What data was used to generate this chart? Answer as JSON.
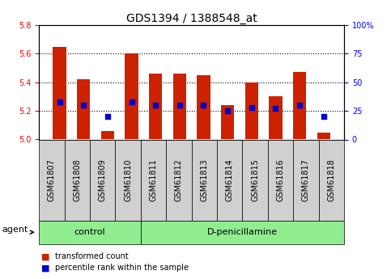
{
  "title": "GDS1394 / 1388548_at",
  "samples": [
    "GSM61807",
    "GSM61808",
    "GSM61809",
    "GSM61810",
    "GSM61811",
    "GSM61812",
    "GSM61813",
    "GSM61814",
    "GSM61815",
    "GSM61816",
    "GSM61817",
    "GSM61818"
  ],
  "bar_tops": [
    5.65,
    5.42,
    5.06,
    5.6,
    5.46,
    5.46,
    5.45,
    5.24,
    5.4,
    5.3,
    5.47,
    5.05
  ],
  "percentile_ranks": [
    33,
    30,
    20,
    33,
    30,
    30,
    30,
    25,
    28,
    27,
    30,
    20
  ],
  "bar_bottom": 5.0,
  "ylim": [
    5.0,
    5.8
  ],
  "y2lim": [
    0,
    100
  ],
  "yticks": [
    5.0,
    5.2,
    5.4,
    5.6,
    5.8
  ],
  "y2ticks": [
    0,
    25,
    50,
    75,
    100
  ],
  "bar_color": "#cc2200",
  "dot_color": "#0000cc",
  "grid_color": "#000000",
  "bg_color": "#ffffff",
  "plot_bg": "#ffffff",
  "bar_width": 0.55,
  "n_control": 4,
  "control_label": "control",
  "dpen_label": "D-penicillamine",
  "agent_label": "agent",
  "legend_bar_label": "transformed count",
  "legend_dot_label": "percentile rank within the sample",
  "title_fontsize": 10,
  "tick_fontsize": 7,
  "label_fontsize": 8,
  "light_green": "#90ee90",
  "gray_tick_bg": "#d0d0d0",
  "y2tick_labels": [
    "0",
    "25",
    "50",
    "75",
    "100%"
  ]
}
